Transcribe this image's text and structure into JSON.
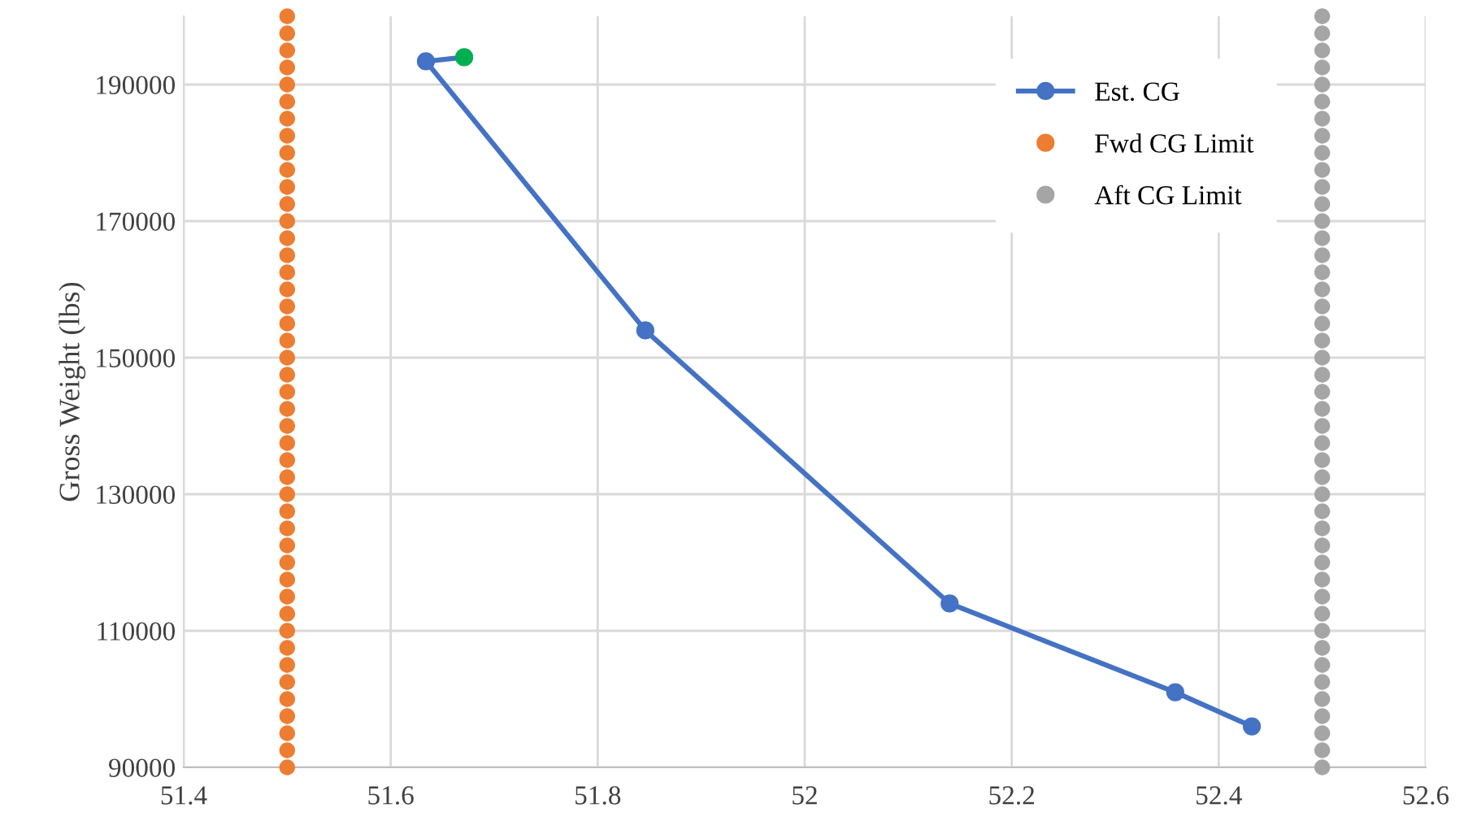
{
  "chart_data": {
    "type": "line",
    "ylabel": "Gross Weight (lbs)",
    "xlim": [
      51.4,
      52.6
    ],
    "xticks": [
      51.4,
      51.6,
      51.8,
      52,
      52.2,
      52.4,
      52.6
    ],
    "ylim": [
      90000,
      200000
    ],
    "yticks": [
      90000,
      110000,
      130000,
      150000,
      170000,
      190000
    ],
    "grid": true,
    "legend": "top right",
    "marker": "circle",
    "series": [
      {
        "name": "Est. CG",
        "color": "#4472c4",
        "colors": [
          "#00b050",
          "#4472c4",
          "#4472c4",
          "#4472c4",
          "#4472c4",
          "#4472c4"
        ],
        "x": [
          51.671,
          51.634,
          51.846,
          52.14,
          52.358,
          52.432
        ],
        "values": [
          194000,
          193400,
          154000,
          114000,
          101000,
          96000
        ]
      },
      {
        "name": "Fwd CG Limit",
        "type": "scatter",
        "color": "#ed7d31",
        "x": [
          51.5,
          51.5,
          51.5,
          51.5,
          51.5,
          51.5,
          51.5,
          51.5,
          51.5,
          51.5,
          51.5,
          51.5,
          51.5,
          51.5,
          51.5,
          51.5,
          51.5,
          51.5,
          51.5,
          51.5,
          51.5,
          51.5,
          51.5,
          51.5,
          51.5,
          51.5,
          51.5,
          51.5,
          51.5,
          51.5,
          51.5,
          51.5,
          51.5,
          51.5,
          51.5,
          51.5,
          51.5,
          51.5,
          51.5,
          51.5,
          51.5,
          51.5,
          51.5,
          51.5,
          51.5
        ],
        "values": [
          90000,
          92500,
          95000,
          97500,
          100000,
          102500,
          105000,
          107500,
          110000,
          112500,
          115000,
          117500,
          120000,
          122500,
          125000,
          127500,
          130000,
          132500,
          135000,
          137500,
          140000,
          142500,
          145000,
          147500,
          150000,
          152500,
          155000,
          157500,
          160000,
          162500,
          165000,
          167500,
          170000,
          172500,
          175000,
          177500,
          180000,
          182500,
          185000,
          187500,
          190000,
          192500,
          195000,
          197500,
          200000
        ]
      },
      {
        "name": "Aft CG Limit",
        "type": "scatter",
        "color": "#a5a5a5",
        "x": [
          52.5,
          52.5,
          52.5,
          52.5,
          52.5,
          52.5,
          52.5,
          52.5,
          52.5,
          52.5,
          52.5,
          52.5,
          52.5,
          52.5,
          52.5,
          52.5,
          52.5,
          52.5,
          52.5,
          52.5,
          52.5,
          52.5,
          52.5,
          52.5,
          52.5,
          52.5,
          52.5,
          52.5,
          52.5,
          52.5,
          52.5,
          52.5,
          52.5,
          52.5,
          52.5,
          52.5,
          52.5,
          52.5,
          52.5,
          52.5,
          52.5,
          52.5,
          52.5,
          52.5,
          52.5
        ],
        "values": [
          90000,
          92500,
          95000,
          97500,
          100000,
          102500,
          105000,
          107500,
          110000,
          112500,
          115000,
          117500,
          120000,
          122500,
          125000,
          127500,
          130000,
          132500,
          135000,
          137500,
          140000,
          142500,
          145000,
          147500,
          150000,
          152500,
          155000,
          157500,
          160000,
          162500,
          165000,
          167500,
          170000,
          172500,
          175000,
          177500,
          180000,
          182500,
          185000,
          187500,
          190000,
          192500,
          195000,
          197500,
          200000
        ]
      }
    ]
  }
}
